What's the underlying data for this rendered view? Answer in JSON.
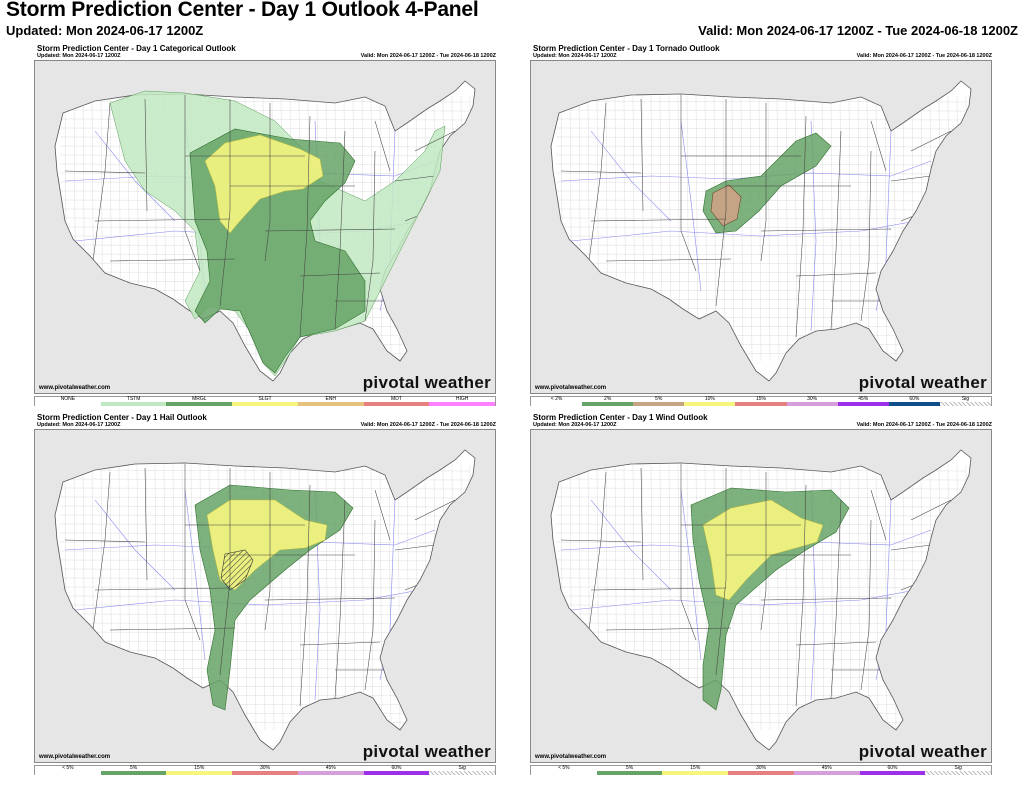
{
  "page": {
    "title": "Storm Prediction Center - Day 1 Outlook 4-Panel",
    "updated": "Updated: Mon 2024-06-17 1200Z",
    "valid": "Valid: Mon 2024-06-17 1200Z - Tue 2024-06-18 1200Z"
  },
  "panels": [
    {
      "title": "Storm Prediction Center - Day 1 Categorical Outlook",
      "updated": "Updated: Mon 2024-06-17 1200Z",
      "valid": "Valid: Mon 2024-06-17 1200Z - Tue 2024-06-18 1200Z",
      "credit": "www.pivotalweather.com",
      "brand": "pivotal weather",
      "legend": [
        {
          "label": "NONE",
          "color": "#ffffff"
        },
        {
          "label": "TSTM",
          "color": "#c1e9c1"
        },
        {
          "label": "MRGL",
          "color": "#66a366"
        },
        {
          "label": "SLGT",
          "color": "#f6f67f"
        },
        {
          "label": "ENH",
          "color": "#e6c27f"
        },
        {
          "label": "MDT",
          "color": "#e67f7f"
        },
        {
          "label": "HIGH",
          "color": "#ff80ff"
        }
      ]
    },
    {
      "title": "Storm Prediction Center - Day 1 Tornado Outlook",
      "updated": "Updated: Mon 2024-06-17 1200Z",
      "valid": "Valid: Mon 2024-06-17 1200Z - Tue 2024-06-18 1200Z",
      "credit": "www.pivotalweather.com",
      "brand": "pivotal weather",
      "legend": [
        {
          "label": "< 2%",
          "color": "#ffffff"
        },
        {
          "label": "2%",
          "color": "#66a366"
        },
        {
          "label": "5%",
          "color": "#c4a484"
        },
        {
          "label": "10%",
          "color": "#f6f67f"
        },
        {
          "label": "15%",
          "color": "#e67f7f"
        },
        {
          "label": "30%",
          "color": "#d69fdb"
        },
        {
          "label": "45%",
          "color": "#9b30e8"
        },
        {
          "label": "60%",
          "color": "#104e8b"
        },
        {
          "label": "Sig",
          "color": "#eeeeee"
        }
      ]
    },
    {
      "title": "Storm Prediction Center - Day 1 Hail Outlook",
      "updated": "Updated: Mon 2024-06-17 1200Z",
      "valid": "Valid: Mon 2024-06-17 1200Z - Tue 2024-06-18 1200Z",
      "credit": "www.pivotalweather.com",
      "brand": "pivotal weather",
      "legend": [
        {
          "label": "< 5%",
          "color": "#ffffff"
        },
        {
          "label": "5%",
          "color": "#66a366"
        },
        {
          "label": "15%",
          "color": "#f6f67f"
        },
        {
          "label": "30%",
          "color": "#e67f7f"
        },
        {
          "label": "45%",
          "color": "#d69fdb"
        },
        {
          "label": "60%",
          "color": "#9b30e8"
        },
        {
          "label": "Sig",
          "color": "#eeeeee"
        }
      ]
    },
    {
      "title": "Storm Prediction Center - Day 1 Wind Outlook",
      "updated": "Updated: Mon 2024-06-17 1200Z",
      "valid": "Valid: Mon 2024-06-17 1200Z - Tue 2024-06-18 1200Z",
      "credit": "www.pivotalweather.com",
      "brand": "pivotal weather",
      "legend": [
        {
          "label": "< 5%",
          "color": "#ffffff"
        },
        {
          "label": "5%",
          "color": "#66a366"
        },
        {
          "label": "15%",
          "color": "#f6f67f"
        },
        {
          "label": "30%",
          "color": "#e67f7f"
        },
        {
          "label": "45%",
          "color": "#d69fdb"
        },
        {
          "label": "60%",
          "color": "#9b30e8"
        },
        {
          "label": "Sig",
          "color": "#eeeeee"
        }
      ]
    }
  ],
  "colors": {
    "land": "#ffffff",
    "ocean": "#e6e6e6",
    "state_border": "#444444",
    "county_border": "#bbbbbb",
    "highway": "#8a8af0",
    "tstm": "#c1e9c1",
    "mrgl": "#66a366",
    "slgt": "#f6f67f",
    "tornado_5": "#c4a484",
    "hatch": "#333333"
  }
}
